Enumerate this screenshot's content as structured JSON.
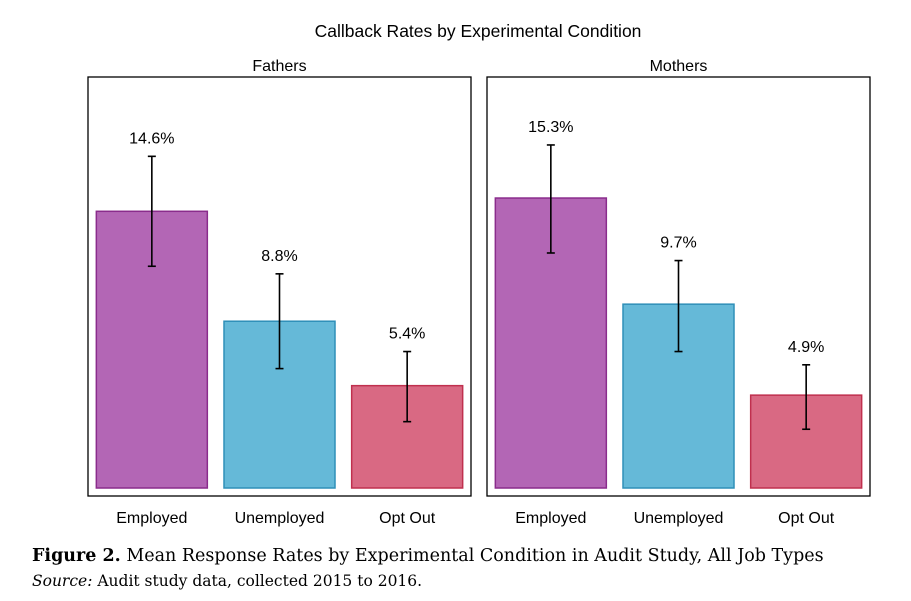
{
  "chart_data": {
    "type": "bar",
    "title": "Callback Rates by Experimental Condition",
    "categories": [
      "Employed",
      "Unemployed",
      "Opt Out"
    ],
    "colors": [
      "#b366b5",
      "#65b9d8",
      "#d96983"
    ],
    "edge_colors": [
      "#8a2c8c",
      "#2f8fb8",
      "#c0304e"
    ],
    "value_unit": "%",
    "panels": [
      {
        "name": "Fathers",
        "values": [
          14.6,
          8.8,
          5.4
        ],
        "labels": [
          "14.6%",
          "8.8%",
          "5.4%"
        ],
        "ci_low": [
          11.7,
          6.3,
          3.5
        ],
        "ci_high": [
          17.5,
          11.3,
          7.2
        ]
      },
      {
        "name": "Mothers",
        "values": [
          15.3,
          9.7,
          4.9
        ],
        "labels": [
          "15.3%",
          "9.7%",
          "4.9%"
        ],
        "ci_low": [
          12.4,
          7.2,
          3.1
        ],
        "ci_high": [
          18.1,
          12.0,
          6.5
        ]
      }
    ],
    "ylim": [
      0,
      21
    ],
    "grid": false,
    "legend": "none"
  },
  "caption": {
    "label": "Figure 2.",
    "text": " Mean Response Rates by Experimental Condition in Audit Study, All Job Types"
  },
  "source": {
    "label": "Source:",
    "text": " Audit study data, collected 2015 to 2016."
  }
}
